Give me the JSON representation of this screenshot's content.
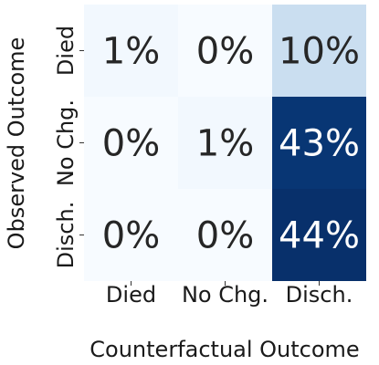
{
  "chart_data": {
    "type": "heatmap",
    "xlabel": "Counterfactual Outcome",
    "ylabel": "Observed Outcome",
    "x_categories": [
      "Died",
      "No Chg.",
      "Disch."
    ],
    "y_categories": [
      "Died",
      "No Chg.",
      "Disch."
    ],
    "values": [
      [
        1,
        0,
        10
      ],
      [
        0,
        1,
        43
      ],
      [
        0,
        0,
        44
      ]
    ],
    "value_format": "percent",
    "colormap": "Blues",
    "value_range": [
      0,
      44
    ],
    "grid": false,
    "colorbar": false
  }
}
